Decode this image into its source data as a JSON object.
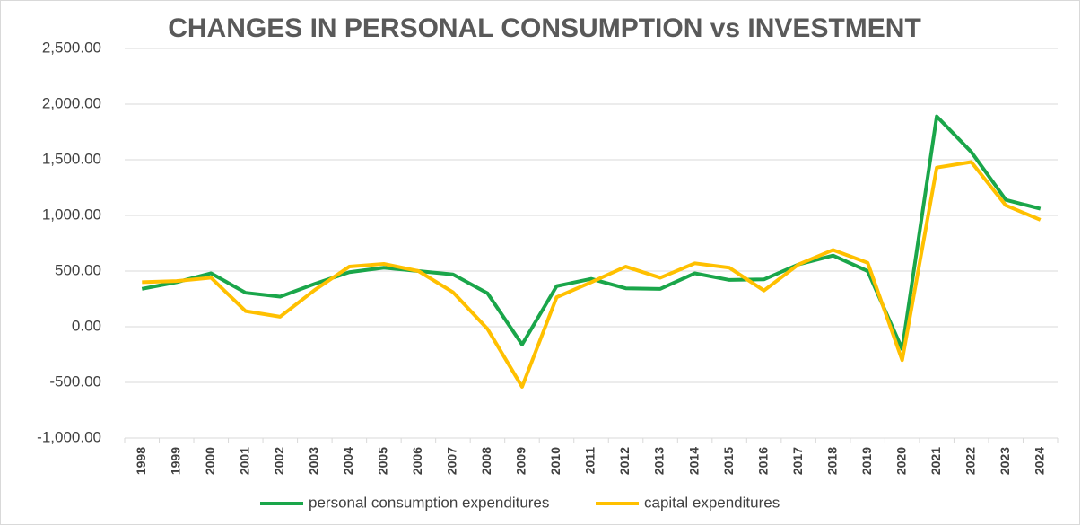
{
  "chart_data": {
    "type": "line",
    "title": "CHANGES IN PERSONAL CONSUMPTION vs INVESTMENT",
    "categories": [
      "1998",
      "1999",
      "2000",
      "2001",
      "2002",
      "2003",
      "2004",
      "2005",
      "2006",
      "2007",
      "2008",
      "2009",
      "2010",
      "2011",
      "2012",
      "2013",
      "2014",
      "2015",
      "2016",
      "2017",
      "2018",
      "2019",
      "2020",
      "2021",
      "2022",
      "2023",
      "2024"
    ],
    "series": [
      {
        "name": "personal consumption expenditures",
        "color": "#1aa64a",
        "values": [
          340,
          400,
          480,
          305,
          270,
          385,
          490,
          530,
          500,
          470,
          300,
          -160,
          365,
          430,
          345,
          340,
          480,
          420,
          425,
          560,
          640,
          500,
          -200,
          1890,
          1570,
          1140,
          1060
        ]
      },
      {
        "name": "capital expenditures",
        "color": "#ffc000",
        "values": [
          400,
          410,
          440,
          140,
          90,
          330,
          540,
          565,
          500,
          310,
          -20,
          -540,
          265,
          400,
          540,
          440,
          570,
          530,
          325,
          560,
          690,
          575,
          -300,
          1430,
          1480,
          1090,
          960
        ]
      }
    ],
    "ylim": [
      -1000,
      2500
    ],
    "yticks": [
      {
        "value": -1000,
        "label": "-1,000.00"
      },
      {
        "value": -500,
        "label": "-500.00"
      },
      {
        "value": 0,
        "label": "0.00"
      },
      {
        "value": 500,
        "label": "500.00"
      },
      {
        "value": 1000,
        "label": "1,000.00"
      },
      {
        "value": 1500,
        "label": "1,500.00"
      },
      {
        "value": 2000,
        "label": "2,000.00"
      },
      {
        "value": 2500,
        "label": "2,500.00"
      }
    ],
    "grid": true,
    "legend": "bottom"
  }
}
